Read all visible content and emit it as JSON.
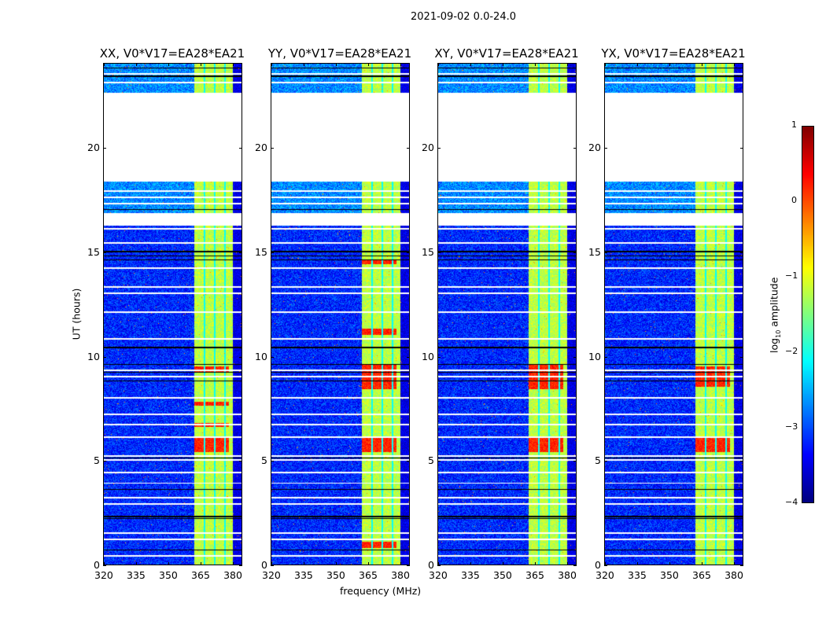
{
  "chart_data": {
    "type": "heatmap",
    "title": "2021-09-02 0.0-24.0",
    "xlabel": "frequency (MHz)",
    "ylabel": "UT (hours)",
    "xlim": [
      320,
      384
    ],
    "ylim": [
      0,
      24
    ],
    "xticks": [
      320,
      335,
      350,
      365,
      380
    ],
    "yticks": [
      0,
      5,
      10,
      15,
      20
    ],
    "panels": [
      {
        "title": "XX, V0*V17=EA28*EA21",
        "red_hours": [
          [
            5.4,
            6.1
          ],
          [
            9.2,
            9.5
          ],
          [
            7.6,
            7.8
          ],
          [
            6.6,
            6.8
          ]
        ]
      },
      {
        "title": "YY, V0*V17=EA28*EA21",
        "red_hours": [
          [
            5.4,
            6.1
          ],
          [
            8.4,
            9.6
          ],
          [
            0.8,
            1.1
          ],
          [
            14.4,
            14.6
          ],
          [
            11.0,
            11.3
          ]
        ]
      },
      {
        "title": "XY, V0*V17=EA28*EA21",
        "red_hours": [
          [
            5.4,
            6.1
          ],
          [
            8.4,
            9.6
          ]
        ]
      },
      {
        "title": "YX, V0*V17=EA28*EA21",
        "red_hours": [
          [
            5.4,
            6.1
          ],
          [
            8.5,
            9.5
          ]
        ]
      }
    ],
    "band_mhz": [
      362,
      380
    ],
    "band_stripes_mhz": [
      366.8,
      371.5,
      376.4
    ],
    "no_data_hours": [
      [
        18.35,
        22.62
      ],
      [
        16.22,
        16.85
      ]
    ],
    "flagged_white_hours": [
      0.4,
      1.2,
      1.5,
      2.9,
      3.2,
      3.9,
      4.4,
      5.0,
      5.2,
      6.1,
      6.7,
      7.2,
      8.0,
      9.0,
      9.3,
      10.8,
      12.1,
      13.0,
      13.3,
      14.2,
      15.4,
      16.1,
      17.3,
      17.6,
      17.9,
      23.1,
      23.5
    ],
    "flagged_black_hours": [
      0.7,
      2.2,
      2.3,
      3.6,
      5.1,
      8.8,
      9.2,
      9.6,
      10.4,
      14.6,
      14.8,
      15.0,
      17.0,
      23.4,
      23.8
    ],
    "colorbar": {
      "min": -4,
      "max": 1,
      "ticks": [
        "1",
        "0",
        "−1",
        "−2",
        "−3",
        "−4"
      ],
      "label_main": "log",
      "label_sub": "10",
      "label_rest": " amplitude",
      "colormap": "jet"
    },
    "colors": {
      "background_level": -3.2,
      "band_level": -1.2,
      "red_level": 0.2
    }
  }
}
